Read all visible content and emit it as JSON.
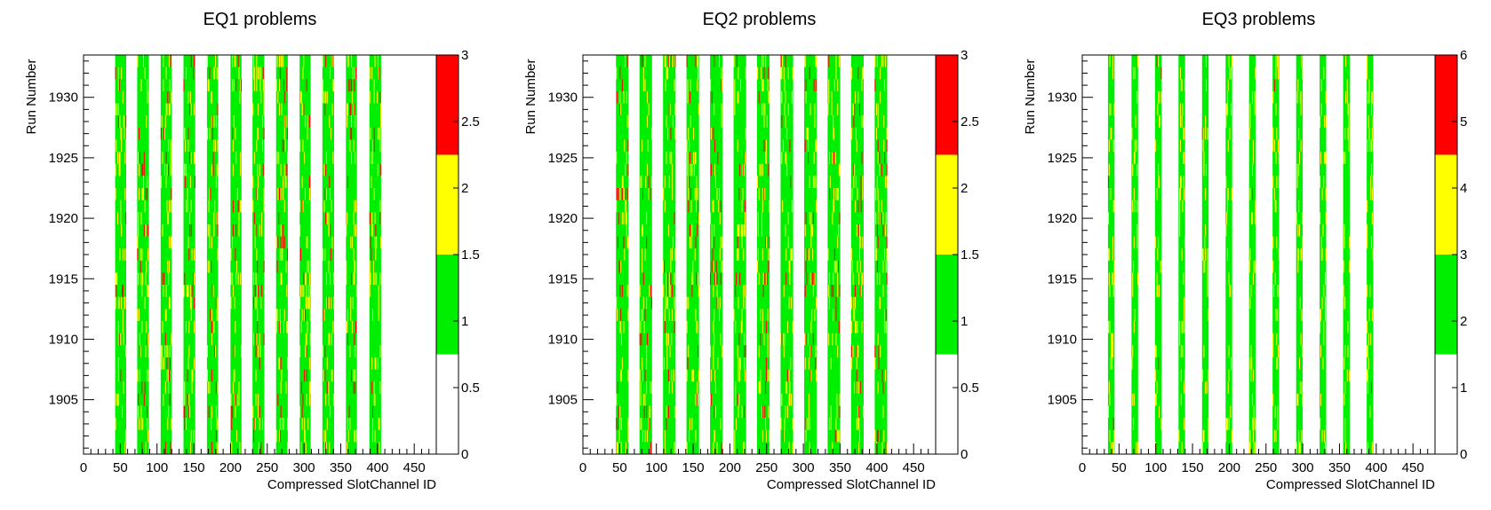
{
  "chart_data": [
    {
      "type": "heatmap",
      "title": "EQ1 problems",
      "xlabel": "Compressed SlotChannel ID",
      "ylabel": "Run Number",
      "xlim": [
        0,
        480
      ],
      "ylim": [
        1900.5,
        1933.5
      ],
      "xticks": [
        0,
        50,
        100,
        150,
        200,
        250,
        300,
        350,
        400,
        450
      ],
      "yticks": [
        1905,
        1910,
        1915,
        1920,
        1925,
        1930
      ],
      "column_bands": [
        [
          43,
          58
        ],
        [
          73,
          89
        ],
        [
          105,
          120
        ],
        [
          136,
          152
        ],
        [
          168,
          183
        ],
        [
          200,
          215
        ],
        [
          230,
          246
        ],
        [
          262,
          278
        ],
        [
          294,
          309
        ],
        [
          325,
          341
        ],
        [
          357,
          372
        ],
        [
          389,
          405
        ]
      ],
      "colorbar": {
        "range": [
          0,
          3
        ],
        "ticks": [
          "0",
          "0.5",
          "1",
          "1.5",
          "2",
          "2.5",
          "3"
        ],
        "levels": [
          {
            "from": 0,
            "to": 0.75,
            "color": "#ffffff"
          },
          {
            "from": 0.75,
            "to": 1.5,
            "color": "#00ee00"
          },
          {
            "from": 1.5,
            "to": 2.25,
            "color": "#ffff00"
          },
          {
            "from": 2.25,
            "to": 3,
            "color": "#ff0000"
          }
        ]
      },
      "value_fractions": {
        "value_2": 0.1,
        "value_3": 0.035
      }
    },
    {
      "type": "heatmap",
      "title": "EQ2 problems",
      "xlabel": "Compressed SlotChannel ID",
      "ylabel": "Run Number",
      "xlim": [
        0,
        480
      ],
      "ylim": [
        1900.5,
        1933.5
      ],
      "xticks": [
        0,
        50,
        100,
        150,
        200,
        250,
        300,
        350,
        400,
        450
      ],
      "yticks": [
        1905,
        1910,
        1915,
        1920,
        1925,
        1930
      ],
      "column_bands": [
        [
          45,
          62
        ],
        [
          77,
          94
        ],
        [
          109,
          126
        ],
        [
          141,
          158
        ],
        [
          173,
          190
        ],
        [
          205,
          222
        ],
        [
          237,
          254
        ],
        [
          269,
          286
        ],
        [
          301,
          318
        ],
        [
          333,
          350
        ],
        [
          365,
          382
        ],
        [
          397,
          414
        ]
      ],
      "colorbar": {
        "range": [
          0,
          3
        ],
        "ticks": [
          "0",
          "0.5",
          "1",
          "1.5",
          "2",
          "2.5",
          "3"
        ],
        "levels": [
          {
            "from": 0,
            "to": 0.75,
            "color": "#ffffff"
          },
          {
            "from": 0.75,
            "to": 1.5,
            "color": "#00ee00"
          },
          {
            "from": 1.5,
            "to": 2.25,
            "color": "#ffff00"
          },
          {
            "from": 2.25,
            "to": 3,
            "color": "#ff0000"
          }
        ]
      },
      "value_fractions": {
        "value_2": 0.1,
        "value_3": 0.035
      }
    },
    {
      "type": "heatmap",
      "title": "EQ3 problems",
      "xlabel": "Compressed SlotChannel ID",
      "ylabel": "Run Number",
      "xlim": [
        0,
        480
      ],
      "ylim": [
        1900.5,
        1933.5
      ],
      "xticks": [
        0,
        50,
        100,
        150,
        200,
        250,
        300,
        350,
        400,
        450
      ],
      "yticks": [
        1905,
        1910,
        1915,
        1920,
        1925,
        1930
      ],
      "column_bands": [
        [
          35,
          44
        ],
        [
          67,
          76
        ],
        [
          99,
          108
        ],
        [
          131,
          140
        ],
        [
          163,
          172
        ],
        [
          195,
          204
        ],
        [
          227,
          236
        ],
        [
          259,
          268
        ],
        [
          291,
          300
        ],
        [
          323,
          332
        ],
        [
          355,
          364
        ],
        [
          387,
          396
        ]
      ],
      "colorbar": {
        "range": [
          0,
          6
        ],
        "ticks": [
          "0",
          "1",
          "2",
          "3",
          "4",
          "5",
          "6"
        ],
        "levels": [
          {
            "from": 0,
            "to": 1.5,
            "color": "#ffffff"
          },
          {
            "from": 1.5,
            "to": 3,
            "color": "#00ee00"
          },
          {
            "from": 3,
            "to": 4.5,
            "color": "#ffff00"
          },
          {
            "from": 4.5,
            "to": 6,
            "color": "#ff0000"
          }
        ]
      },
      "value_fractions": {
        "value_2": 0.12,
        "value_3": 0.003
      }
    }
  ]
}
